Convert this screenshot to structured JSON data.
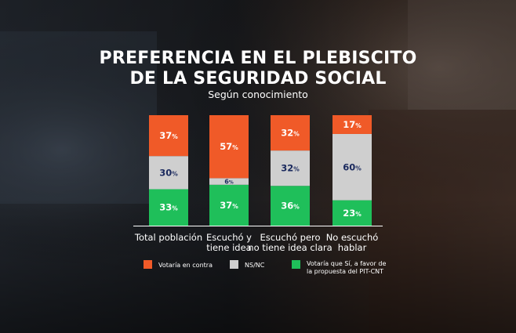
{
  "colors": {
    "contra": "#f05a28",
    "nsnc": "#cfcfcf",
    "si": "#1fbf5a",
    "value_on_dark": "#ffffff",
    "value_on_light": "#1b2a5e"
  },
  "chart_data": {
    "type": "bar",
    "stacked": true,
    "percent_stacked": true,
    "title": "PREFERENCIA EN EL PLEBISCITO DE LA SEGURIDAD SOCIAL",
    "title_line1": "PREFERENCIA EN EL PLEBISCITO",
    "title_line2": "DE LA SEGURIDAD SOCIAL",
    "subtitle": "Según conocimiento",
    "xlabel": "",
    "ylabel": "",
    "ylim": [
      0,
      100
    ],
    "grid": false,
    "unit": "%",
    "categories": [
      "Total población",
      "Escuchó y tiene idea",
      "Escuchó pero no tiene idea clara",
      "No escuchó hablar"
    ],
    "category_lines": [
      [
        "Total población"
      ],
      [
        "Escuchó y",
        "tiene idea"
      ],
      [
        "Escuchó pero",
        "no tiene idea clara"
      ],
      [
        "No escuchó",
        "hablar"
      ]
    ],
    "series": [
      {
        "key": "si",
        "name": "Votaría que Sí, a favor de la propuesta del PIT-CNT",
        "values": [
          33,
          37,
          36,
          23
        ]
      },
      {
        "key": "nsnc",
        "name": "NS/NC",
        "values": [
          30,
          6,
          32,
          60
        ]
      },
      {
        "key": "contra",
        "name": "Votaría en contra",
        "values": [
          37,
          57,
          32,
          17
        ]
      }
    ],
    "legend": [
      {
        "key": "contra",
        "lines": [
          "Votaría en contra"
        ]
      },
      {
        "key": "nsnc",
        "lines": [
          "NS/NC"
        ]
      },
      {
        "key": "si",
        "lines": [
          "Votaría que Sí, a favor de",
          "la propuesta del PIT-CNT"
        ]
      }
    ],
    "legend_position": "bottom"
  }
}
